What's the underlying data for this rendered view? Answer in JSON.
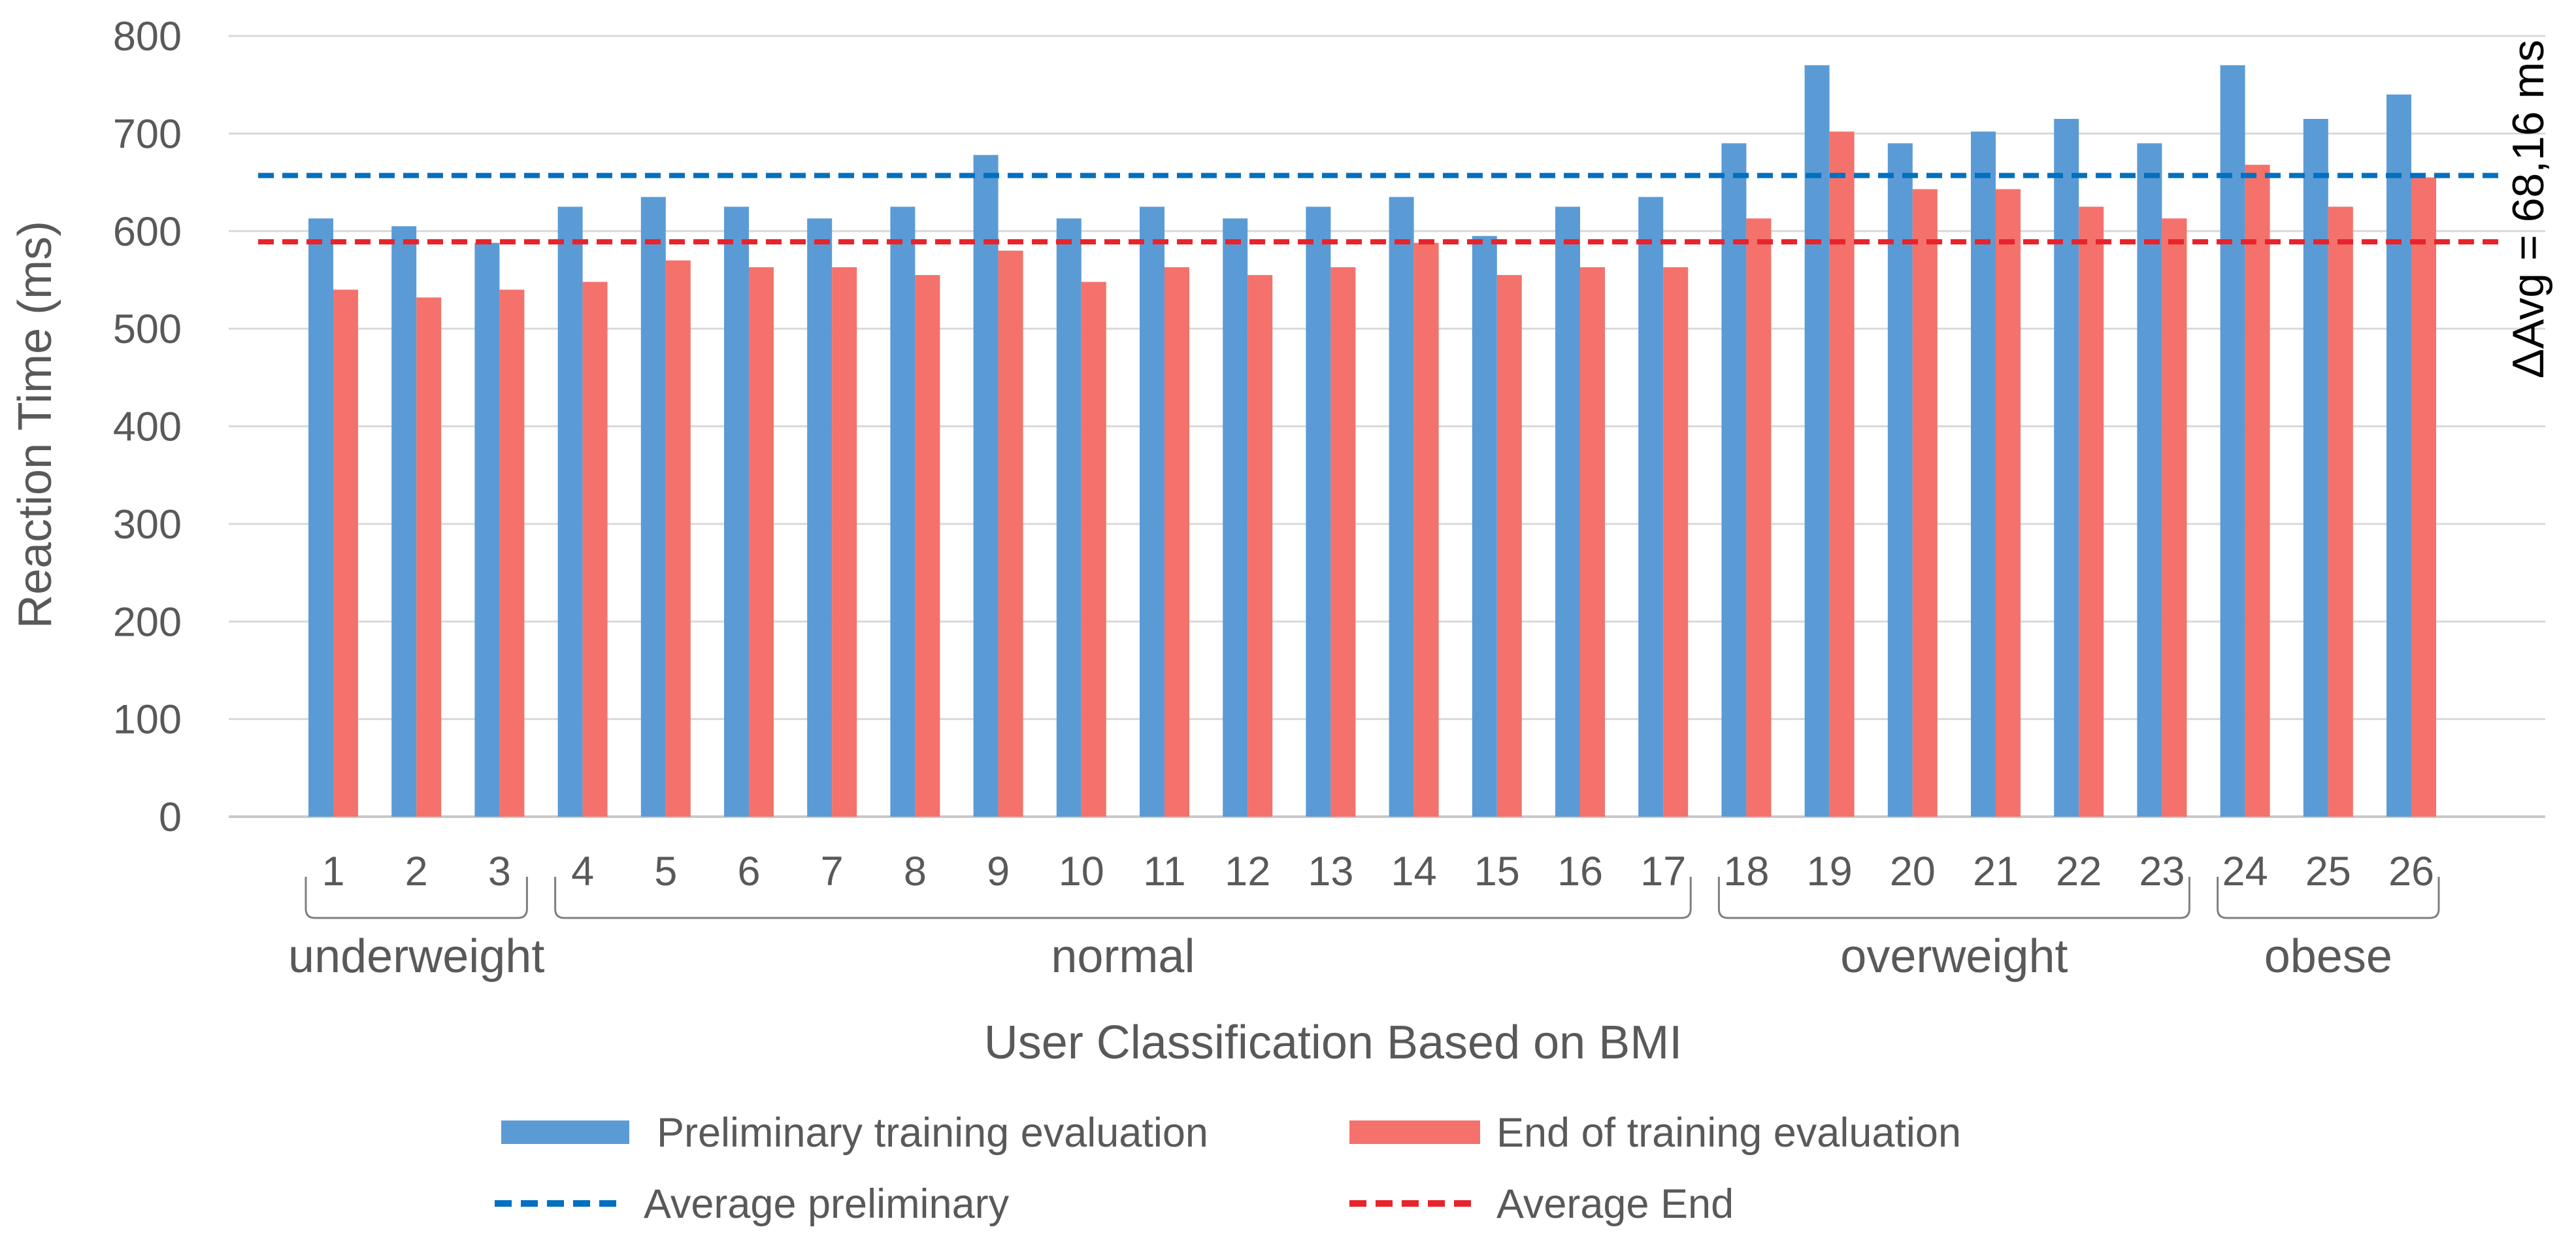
{
  "chart_data": {
    "type": "bar",
    "title": "",
    "ylabel": "Reaction Time (ms)",
    "xlabel": "User Classification Based on BMI",
    "ylim": [
      0,
      800
    ],
    "yticks": [
      0,
      100,
      200,
      300,
      400,
      500,
      600,
      700,
      800
    ],
    "grid": true,
    "categories": [
      "1",
      "2",
      "3",
      "4",
      "5",
      "6",
      "7",
      "8",
      "9",
      "10",
      "11",
      "12",
      "13",
      "14",
      "15",
      "16",
      "17",
      "18",
      "19",
      "20",
      "21",
      "22",
      "23",
      "24",
      "25",
      "26"
    ],
    "series": [
      {
        "name": "Preliminary training evaluation",
        "color": "#5B9BD5",
        "values": [
          613,
          605,
          588,
          625,
          635,
          625,
          613,
          625,
          678,
          613,
          625,
          613,
          625,
          635,
          595,
          625,
          635,
          690,
          770,
          690,
          702,
          715,
          690,
          770,
          715,
          740
        ]
      },
      {
        "name": "End of training evaluation",
        "color": "#F4726B",
        "values": [
          540,
          532,
          540,
          548,
          570,
          563,
          563,
          555,
          580,
          548,
          563,
          555,
          563,
          588,
          555,
          563,
          563,
          613,
          702,
          643,
          643,
          625,
          613,
          668,
          625,
          655
        ]
      }
    ],
    "reference_lines": [
      {
        "name": "Average preliminary",
        "value": 657,
        "color": "#0070C0"
      },
      {
        "name": "Average End",
        "value": 589,
        "color": "#E8232B"
      }
    ],
    "groups": [
      {
        "label": "underweight",
        "start": 1,
        "end": 3
      },
      {
        "label": "normal",
        "start": 4,
        "end": 17
      },
      {
        "label": "overweight",
        "start": 18,
        "end": 23
      },
      {
        "label": "obese",
        "start": 24,
        "end": 26
      }
    ],
    "annotation": "ΔAvg = 68,16 ms",
    "legend": {
      "placement": "bottom",
      "items": [
        {
          "label": "Preliminary training evaluation",
          "kind": "bar",
          "color": "#5B9BD5"
        },
        {
          "label": "End of training evaluation",
          "kind": "bar",
          "color": "#F4726B"
        },
        {
          "label": "Average preliminary",
          "kind": "dashed",
          "color": "#0070C0"
        },
        {
          "label": "Average End",
          "kind": "dashed",
          "color": "#E8232B"
        }
      ]
    }
  }
}
